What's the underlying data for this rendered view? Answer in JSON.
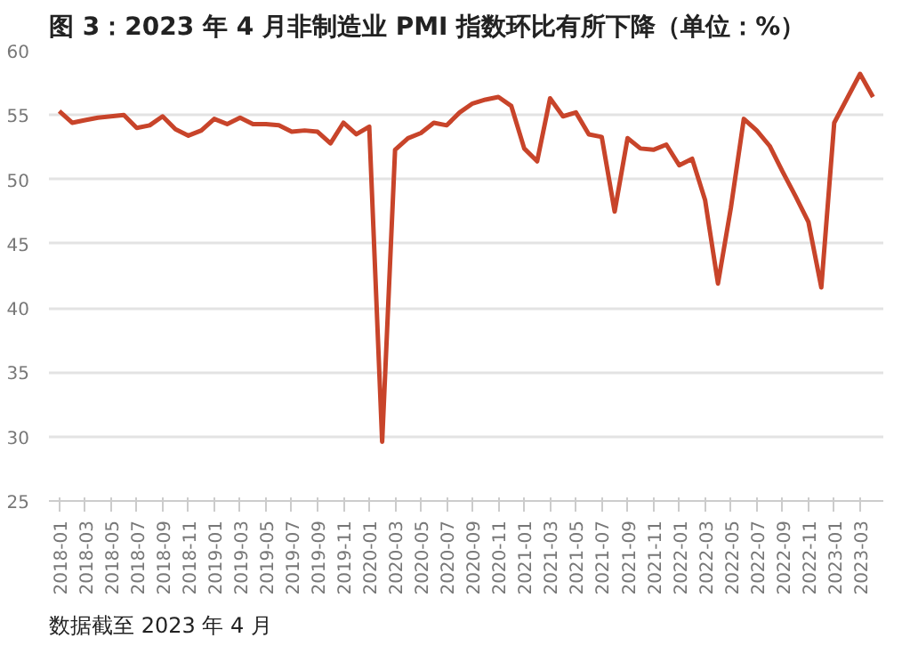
{
  "chart_data": {
    "type": "line",
    "title": "图 3：2023 年 4 月非制造业 PMI 指数环比有所下降（单位：%）",
    "categories": [
      "2018-01",
      null,
      "2018-03",
      null,
      "2018-05",
      null,
      "2018-07",
      null,
      "2018-09",
      null,
      "2018-11",
      null,
      "2019-01",
      null,
      "2019-03",
      null,
      "2019-05",
      null,
      "2019-07",
      null,
      "2019-09",
      null,
      "2019-11",
      null,
      "2020-01",
      null,
      "2020-03",
      null,
      "2020-05",
      null,
      "2020-07",
      null,
      "2020-09",
      null,
      "2020-11",
      null,
      "2021-01",
      null,
      "2021-03",
      null,
      "2021-05",
      null,
      "2021-07",
      null,
      "2021-09",
      null,
      "2021-11",
      null,
      "2022-01",
      null,
      "2022-03",
      null,
      "2022-05",
      null,
      "2022-07",
      null,
      "2022-09",
      null,
      "2022-11",
      null,
      "2023-01",
      null,
      "2023-03",
      null
    ],
    "series": [
      {
        "color": "#c8442a",
        "values": [
          55.3,
          54.4,
          54.6,
          54.8,
          54.9,
          55.0,
          54.0,
          54.2,
          54.9,
          53.9,
          53.4,
          53.8,
          54.7,
          54.3,
          54.8,
          54.3,
          54.3,
          54.2,
          53.7,
          53.8,
          53.7,
          52.8,
          54.4,
          53.5,
          54.1,
          29.6,
          52.3,
          53.2,
          53.6,
          54.4,
          54.2,
          55.2,
          55.9,
          56.2,
          56.4,
          55.7,
          52.4,
          51.4,
          56.3,
          54.9,
          55.2,
          53.5,
          53.3,
          47.5,
          53.2,
          52.4,
          52.3,
          52.7,
          51.1,
          51.6,
          48.4,
          41.9,
          47.8,
          54.7,
          53.8,
          52.6,
          50.6,
          48.7,
          46.7,
          41.6,
          54.4,
          56.3,
          58.2,
          56.4
        ]
      }
    ],
    "ylim": [
      25,
      60
    ],
    "yticks": [
      25,
      30,
      35,
      40,
      45,
      50,
      55,
      60
    ],
    "grid": "y",
    "marker": "none",
    "line_style": "solid",
    "annotations": [
      "数据截至 2023 年 4 月"
    ]
  }
}
